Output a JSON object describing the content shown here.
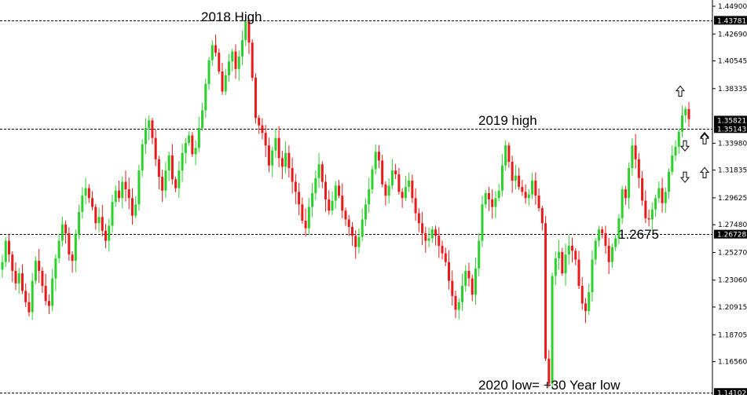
{
  "chart_data": {
    "type": "candlestick",
    "title": "",
    "xlabel": "",
    "ylabel": "",
    "ylim": [
      1.139,
      1.454
    ],
    "grid": false,
    "colors": {
      "up": "#2bd12b",
      "down": "#e81a1a",
      "line": "#000000",
      "axis": "#000000",
      "background": "#ffffff",
      "tag_bg": "#000000"
    },
    "y_ticks": [
      "1.44900",
      "1.42690",
      "1.40545",
      "1.38335",
      "1.33980",
      "1.31835",
      "1.29625",
      "1.27480",
      "1.25270",
      "1.23060",
      "1.20915",
      "1.18705",
      "1.16560"
    ],
    "price_tags": [
      "1.43781",
      "1.35821",
      "1.35143",
      "1.26728",
      "1.14102"
    ],
    "horizontal_lines": [
      1.43781,
      1.35143,
      1.26728,
      1.14102
    ],
    "annotations": [
      "2018 High",
      "2019 high",
      "1.2675",
      "2020 low= +30 Year low"
    ],
    "arrows": [
      {
        "direction": "up",
        "price": 1.381
      },
      {
        "direction": "down",
        "price": 1.338
      },
      {
        "direction": "up",
        "price": 1.344
      },
      {
        "direction": "down",
        "price": 1.313
      },
      {
        "direction": "up",
        "price": 1.316
      },
      {
        "direction": "up",
        "price": 1.343
      }
    ],
    "closes": [
      1.245,
      1.262,
      1.251,
      1.238,
      1.228,
      1.236,
      1.222,
      1.213,
      1.205,
      1.23,
      1.246,
      1.238,
      1.226,
      1.214,
      1.21,
      1.232,
      1.248,
      1.262,
      1.275,
      1.268,
      1.251,
      1.246,
      1.267,
      1.285,
      1.298,
      1.304,
      1.296,
      1.289,
      1.276,
      1.281,
      1.27,
      1.262,
      1.274,
      1.293,
      1.302,
      1.296,
      1.309,
      1.303,
      1.296,
      1.282,
      1.291,
      1.318,
      1.339,
      1.352,
      1.358,
      1.344,
      1.327,
      1.313,
      1.302,
      1.318,
      1.33,
      1.311,
      1.304,
      1.318,
      1.332,
      1.34,
      1.346,
      1.331,
      1.336,
      1.352,
      1.366,
      1.387,
      1.406,
      1.418,
      1.412,
      1.397,
      1.381,
      1.394,
      1.405,
      1.413,
      1.399,
      1.409,
      1.422,
      1.437,
      1.42,
      1.392,
      1.36,
      1.354,
      1.348,
      1.338,
      1.322,
      1.334,
      1.344,
      1.328,
      1.321,
      1.332,
      1.32,
      1.309,
      1.301,
      1.291,
      1.278,
      1.272,
      1.289,
      1.3,
      1.312,
      1.323,
      1.309,
      1.295,
      1.286,
      1.294,
      1.306,
      1.298,
      1.286,
      1.279,
      1.273,
      1.266,
      1.257,
      1.265,
      1.279,
      1.291,
      1.303,
      1.319,
      1.333,
      1.326,
      1.307,
      1.298,
      1.306,
      1.318,
      1.315,
      1.301,
      1.296,
      1.305,
      1.31,
      1.296,
      1.284,
      1.276,
      1.268,
      1.262,
      1.264,
      1.271,
      1.266,
      1.258,
      1.252,
      1.245,
      1.23,
      1.218,
      1.207,
      1.213,
      1.226,
      1.238,
      1.232,
      1.219,
      1.24,
      1.262,
      1.291,
      1.3,
      1.295,
      1.289,
      1.296,
      1.302,
      1.322,
      1.338,
      1.325,
      1.31,
      1.314,
      1.305,
      1.301,
      1.296,
      1.299,
      1.31,
      1.298,
      1.288,
      1.276,
      1.168,
      1.148,
      1.234,
      1.248,
      1.253,
      1.236,
      1.251,
      1.258,
      1.254,
      1.247,
      1.226,
      1.212,
      1.206,
      1.221,
      1.247,
      1.262,
      1.271,
      1.268,
      1.258,
      1.245,
      1.257,
      1.264,
      1.28,
      1.303,
      1.296,
      1.32,
      1.338,
      1.327,
      1.312,
      1.294,
      1.28,
      1.279,
      1.287,
      1.296,
      1.304,
      1.292,
      1.301,
      1.317,
      1.33,
      1.337,
      1.349,
      1.362,
      1.367,
      1.359
    ]
  }
}
